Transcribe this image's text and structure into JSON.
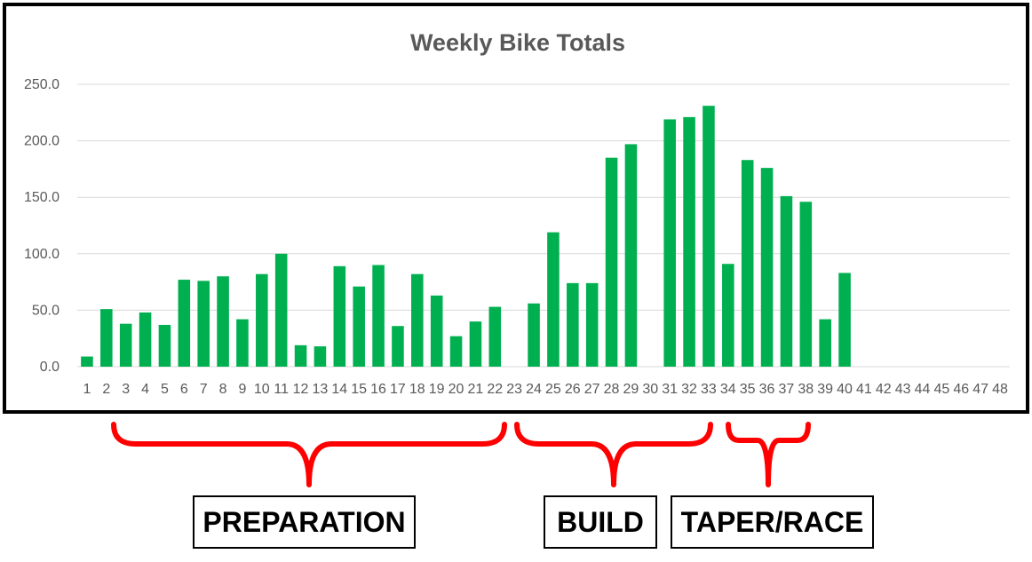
{
  "chart_data": {
    "type": "bar",
    "title": "Weekly Bike Totals",
    "xlabel": "",
    "ylabel": "",
    "ylim": [
      0,
      250
    ],
    "y_ticks": [
      "0.0",
      "50.0",
      "100.0",
      "150.0",
      "200.0",
      "250.0"
    ],
    "grid": true,
    "legend": "none",
    "bar_color": "#00b050",
    "categories": [
      "1",
      "2",
      "3",
      "4",
      "5",
      "6",
      "7",
      "8",
      "9",
      "10",
      "11",
      "12",
      "13",
      "14",
      "15",
      "16",
      "17",
      "18",
      "19",
      "20",
      "21",
      "22",
      "23",
      "24",
      "25",
      "26",
      "27",
      "28",
      "29",
      "30",
      "31",
      "32",
      "33",
      "34",
      "35",
      "36",
      "37",
      "38",
      "39",
      "40",
      "41",
      "42",
      "43",
      "44",
      "45",
      "46",
      "47",
      "48"
    ],
    "values": [
      9,
      51,
      38,
      48,
      37,
      77,
      76,
      80,
      42,
      82,
      100,
      19,
      18,
      89,
      71,
      90,
      36,
      82,
      63,
      27,
      40,
      53,
      0,
      56,
      119,
      74,
      74,
      185,
      197,
      0,
      219,
      221,
      231,
      91,
      183,
      176,
      151,
      146,
      42,
      83,
      0,
      0,
      0,
      0,
      0,
      0,
      0,
      0
    ]
  },
  "phases": [
    {
      "label": "PREPARATION",
      "color": "#ff0000"
    },
    {
      "label": "BUILD",
      "color": "#ff0000"
    },
    {
      "label": "TAPER/RACE",
      "color": "#ff0000"
    }
  ]
}
